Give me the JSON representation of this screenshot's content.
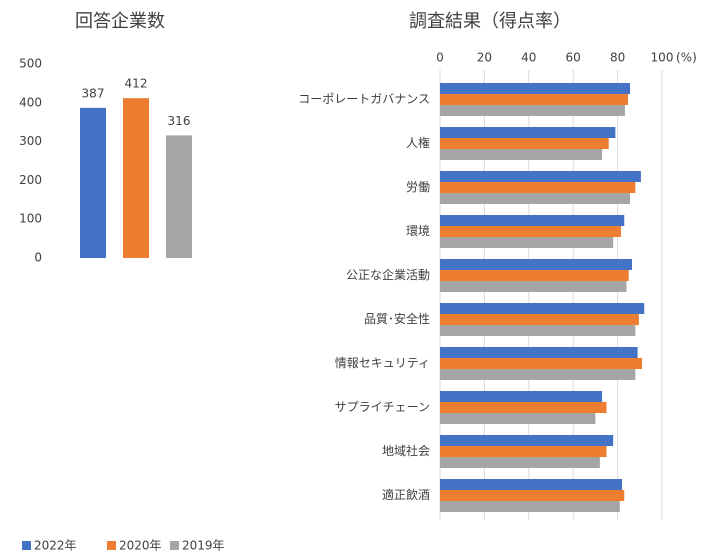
{
  "chart_data": [
    {
      "type": "bar",
      "title": "回答企業数",
      "ylim": [
        0,
        500
      ],
      "yticks": [
        0,
        100,
        200,
        300,
        400,
        500
      ],
      "series": [
        {
          "name": "2022年",
          "color": "#4472c4",
          "values": [
            387
          ]
        },
        {
          "name": "2020年",
          "color": "#ed7d31",
          "values": [
            412
          ]
        },
        {
          "name": "2019年",
          "color": "#a5a5a5",
          "values": [
            316
          ]
        }
      ]
    },
    {
      "type": "hbar",
      "title": "調査結果（得点率）",
      "xlabel": "(%)",
      "xlim": [
        0,
        100
      ],
      "xticks": [
        0,
        20,
        40,
        60,
        80,
        100
      ],
      "grid": true,
      "categories": [
        "コーポレートガバナンス",
        "人権",
        "労働",
        "環境",
        "公正な企業活動",
        "品質･安全性",
        "情報セキュリティ",
        "サプライチェーン",
        "地域社会",
        "適正飲酒"
      ],
      "series": [
        {
          "color": "#4472c4",
          "values": [
            85.6,
            79,
            90.5,
            83,
            86.5,
            92,
            89,
            73,
            78,
            82
          ]
        },
        {
          "color": "#ed7d31",
          "values": [
            84.7,
            76,
            88,
            81.5,
            85,
            89.6,
            91,
            75,
            75,
            83
          ]
        },
        {
          "color": "#a5a5a5",
          "values": [
            83.3,
            73,
            85.6,
            78,
            84,
            88,
            88,
            70,
            72,
            81
          ]
        }
      ]
    }
  ]
}
